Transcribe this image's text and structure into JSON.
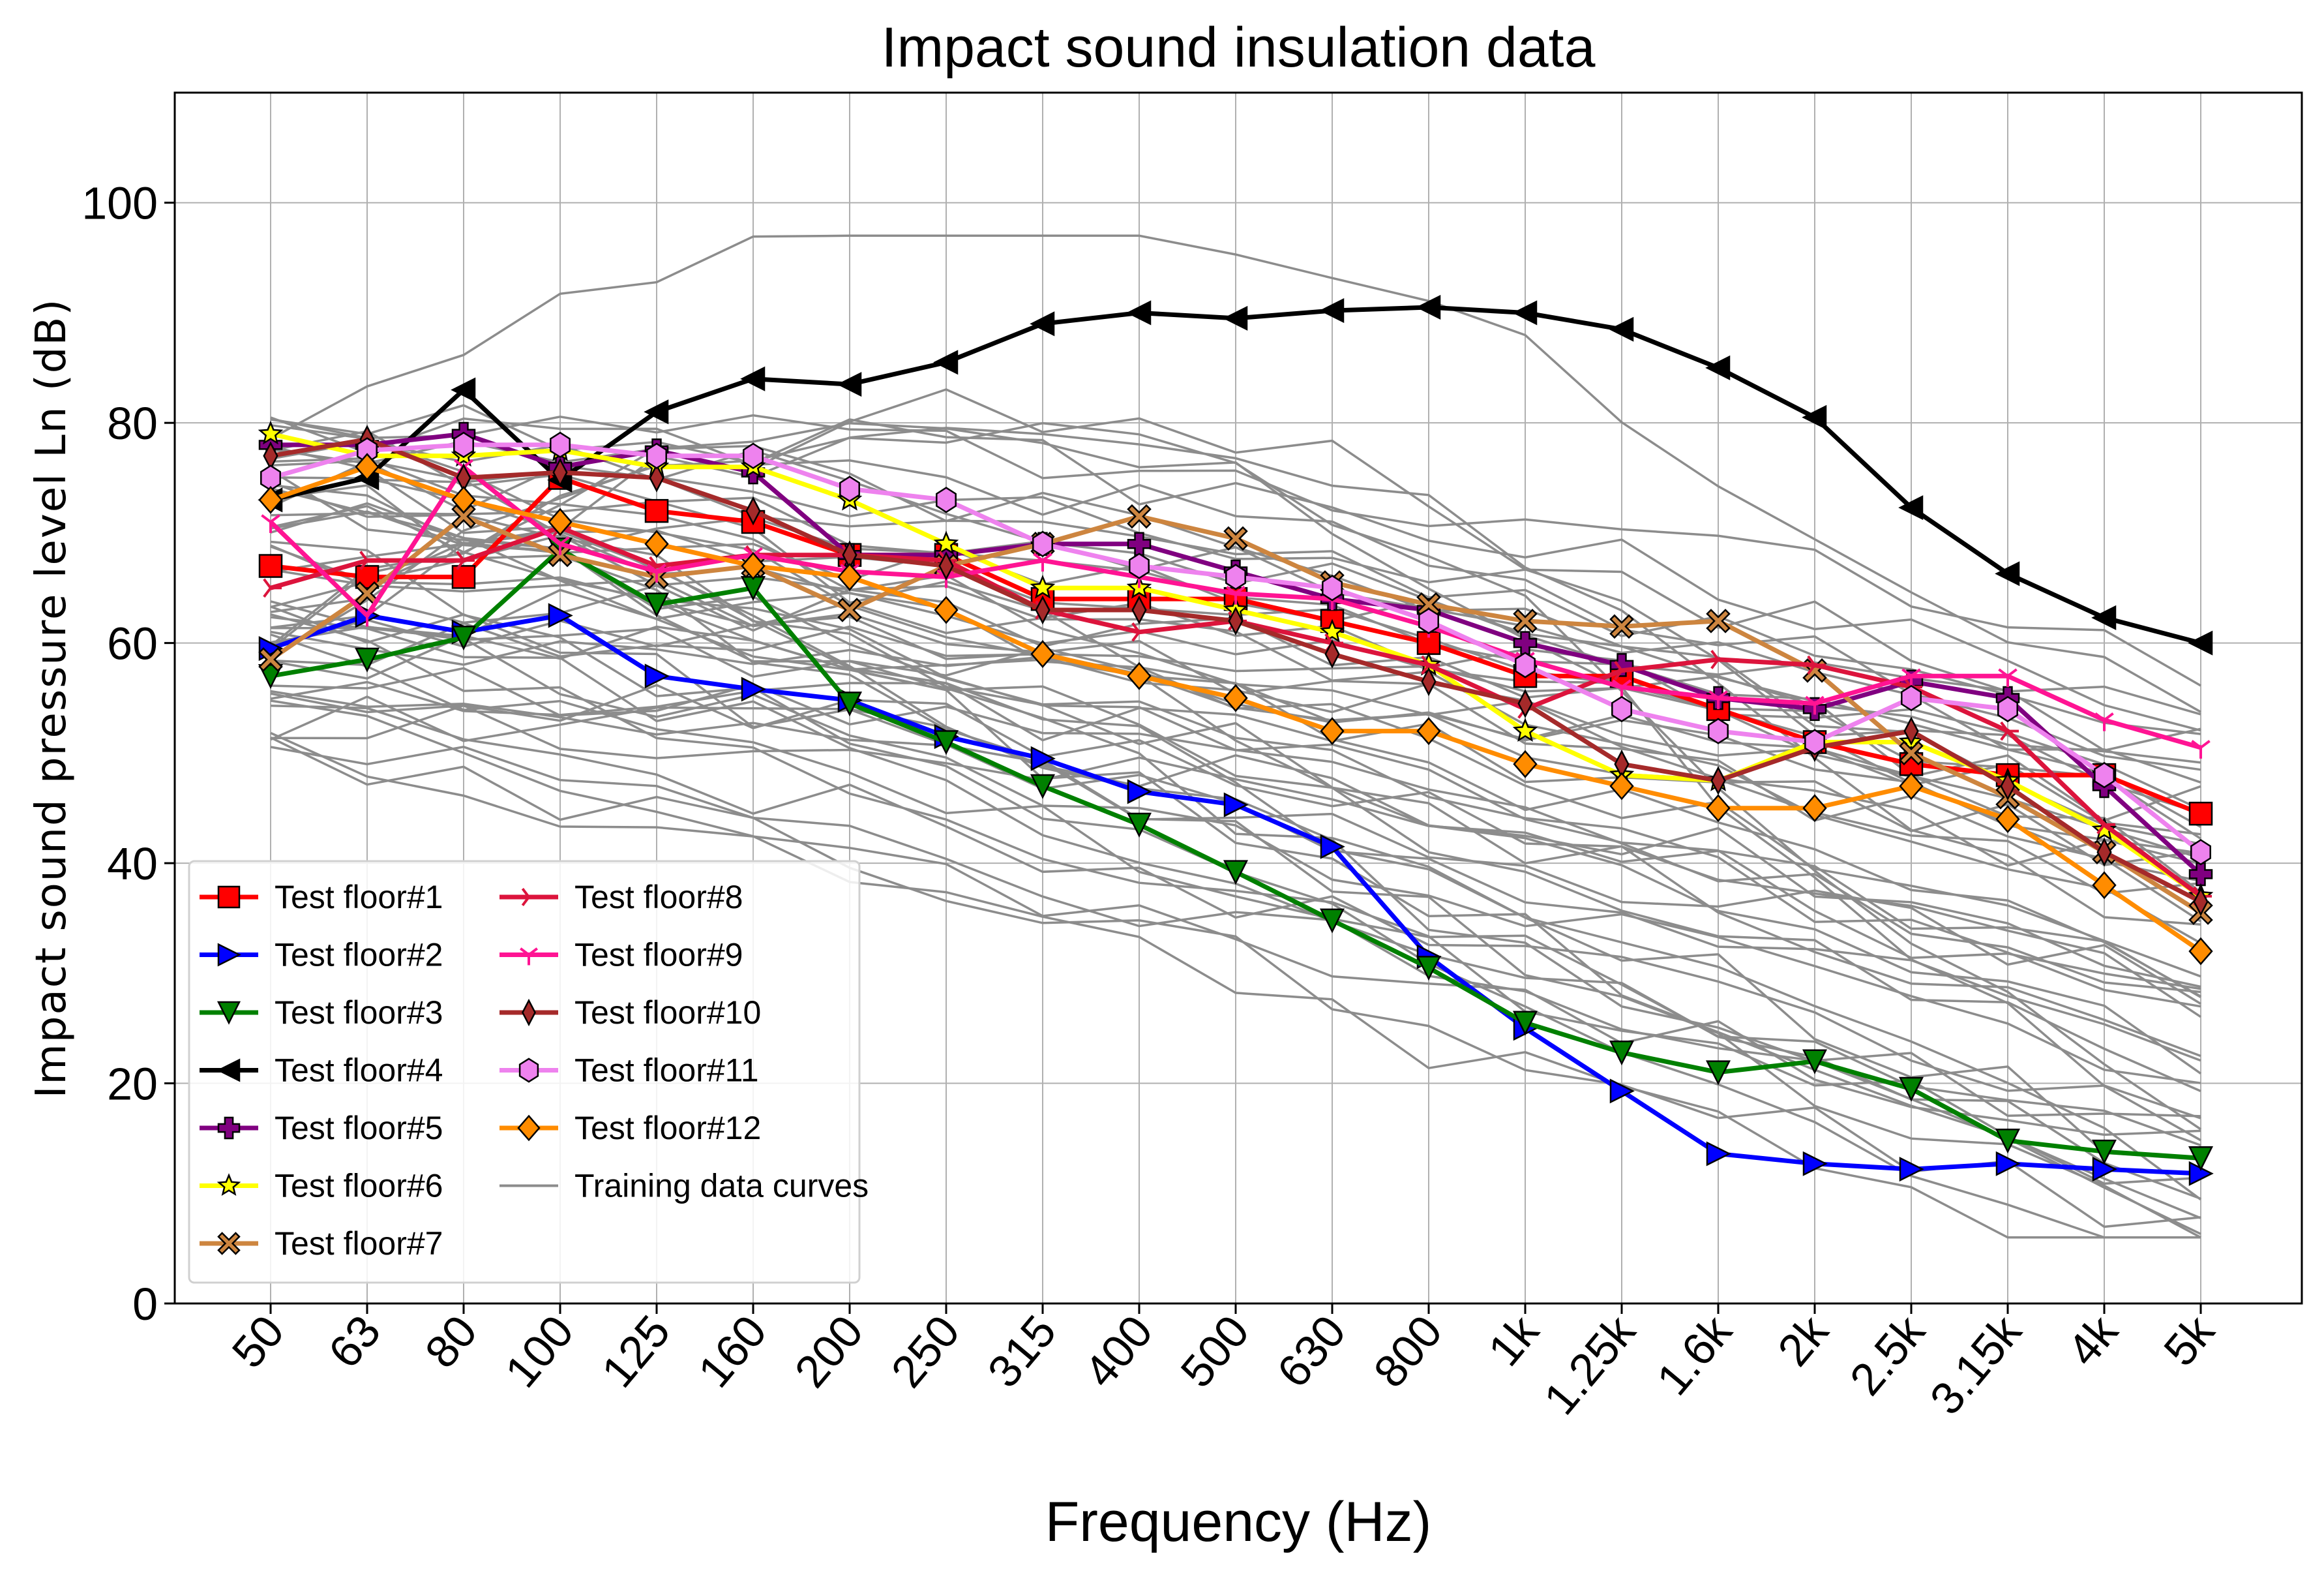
{
  "chart_data": {
    "type": "line",
    "title": "Impact sound insulation data",
    "xlabel": "Frequency (Hz)",
    "ylabel": "Impact sound pressure level Ln (dB)",
    "ylim": [
      0,
      110
    ],
    "yticks": [
      0,
      20,
      40,
      60,
      80,
      100
    ],
    "categories": [
      "50",
      "63",
      "80",
      "100",
      "125",
      "160",
      "200",
      "250",
      "315",
      "400",
      "500",
      "630",
      "800",
      "1k",
      "1.25k",
      "1.6k",
      "2k",
      "2.5k",
      "3.15k",
      "4k",
      "5k"
    ],
    "grid": true,
    "legend_position": "lower-left",
    "colors": {
      "training": "#8c8c8c",
      "grid": "#b0b0b0",
      "axes": "#000000"
    },
    "series": [
      {
        "name": "Test floor#1",
        "color": "#ff0000",
        "marker": "square",
        "values": [
          67,
          66,
          66,
          75,
          72,
          71,
          68,
          68,
          64,
          64,
          64,
          62,
          60,
          57,
          57,
          54,
          51,
          49,
          48,
          48,
          44.5
        ]
      },
      {
        "name": "Test floor#2",
        "color": "#0000ff",
        "marker": "triangle-right",
        "values": [
          59.5,
          62.5,
          61,
          62.5,
          57,
          55.8,
          54.8,
          51.5,
          49.5,
          46.5,
          45.3,
          41.5,
          31.5,
          25,
          19.3,
          13.6,
          12.7,
          12.2,
          12.7,
          12.2,
          11.8
        ]
      },
      {
        "name": "Test floor#3",
        "color": "#008000",
        "marker": "triangle-down",
        "values": [
          57,
          58.5,
          60.5,
          68.5,
          63.5,
          65,
          54.5,
          51,
          47,
          43.5,
          39.2,
          34.8,
          30.5,
          25.5,
          22.8,
          21,
          22,
          19.5,
          14.8,
          13.8,
          13.2
        ]
      },
      {
        "name": "Test floor#4",
        "color": "#000000",
        "marker": "triangle-left",
        "values": [
          73,
          75,
          83,
          74.8,
          81,
          84,
          83.5,
          85.5,
          89,
          90,
          89.5,
          90.2,
          90.5,
          90,
          88.5,
          85,
          80.5,
          72.3,
          66.3,
          62.3,
          60
        ]
      },
      {
        "name": "Test floor#5",
        "color": "#800080",
        "marker": "plus",
        "values": [
          78,
          78,
          79,
          76,
          77.5,
          75.5,
          68,
          68,
          69,
          69,
          66.5,
          64,
          63,
          60,
          58,
          55,
          54,
          56.5,
          55,
          47,
          39
        ]
      },
      {
        "name": "Test floor#6",
        "color": "#ffff00",
        "marker": "star",
        "values": [
          79,
          77,
          77,
          77.5,
          76,
          76,
          73,
          69,
          65,
          65,
          63,
          61,
          58,
          52,
          48,
          47.5,
          51,
          51,
          47.5,
          43,
          37
        ]
      },
      {
        "name": "Test floor#7",
        "color": "#cd853f",
        "marker": "x",
        "values": [
          58.5,
          64.5,
          71.5,
          68,
          66,
          67,
          63,
          67,
          69,
          71.5,
          69.5,
          65.5,
          63.5,
          62,
          61.5,
          62,
          57.5,
          50,
          46,
          41,
          35.5
        ]
      },
      {
        "name": "Test floor#8",
        "color": "#dc143c",
        "marker": "tri-right",
        "values": [
          65,
          67.5,
          67.5,
          70.5,
          67,
          68,
          68,
          67.5,
          63,
          61,
          62,
          60,
          58,
          54,
          57.5,
          58.5,
          58,
          56,
          52,
          43.5,
          37
        ]
      },
      {
        "name": "Test floor#9",
        "color": "#ff1493",
        "marker": "tri-down",
        "values": [
          71,
          62.5,
          76,
          69,
          66.5,
          68,
          66.5,
          66,
          67.5,
          66,
          64.5,
          64,
          61.5,
          58.5,
          56,
          55,
          54.5,
          57,
          57,
          53,
          50.5
        ]
      },
      {
        "name": "Test floor#10",
        "color": "#a52a2a",
        "marker": "thin-diamond",
        "values": [
          77,
          78.5,
          75,
          75.5,
          75,
          72,
          68,
          67,
          63,
          63,
          62,
          59,
          56.5,
          54.5,
          49,
          47.5,
          50.5,
          52,
          47,
          41,
          36.5
        ]
      },
      {
        "name": "Test floor#11",
        "color": "#ee82ee",
        "marker": "hexagon",
        "values": [
          75,
          77.5,
          78,
          78,
          77,
          77,
          74,
          73,
          69,
          67,
          66,
          65,
          62,
          58,
          54,
          52,
          51,
          55,
          54,
          48,
          41
        ]
      },
      {
        "name": "Test floor#12",
        "color": "#ff8c00",
        "marker": "diamond",
        "values": [
          73,
          76,
          73,
          71,
          69,
          67,
          66,
          63,
          59,
          57,
          55,
          52,
          52,
          49,
          47,
          45,
          45,
          47,
          44,
          38,
          32
        ]
      }
    ],
    "training_label": "Training data curves"
  }
}
